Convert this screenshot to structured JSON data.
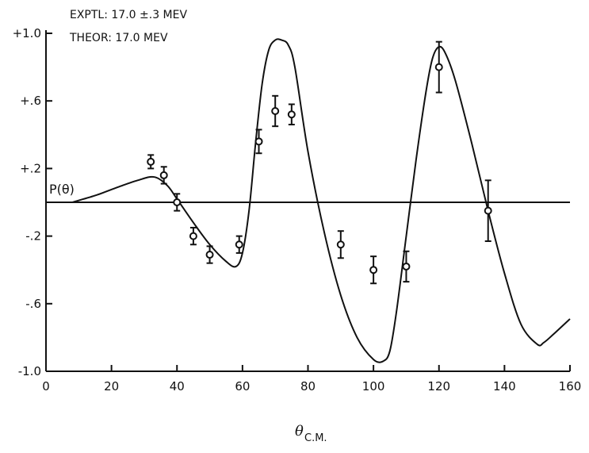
{
  "chart_data": {
    "type": "scatter",
    "title": "",
    "annotations": [
      "EXPTL: 17.0 ±.3 MEV",
      "THEOR: 17.0 MEV"
    ],
    "ylabel": "P(θ)",
    "xlabel_main": "θ",
    "xlabel_sub": "C.M.",
    "xlim": [
      0,
      160
    ],
    "ylim": [
      -1.0,
      1.0
    ],
    "x_ticks": [
      0,
      20,
      40,
      60,
      80,
      100,
      120,
      140,
      160
    ],
    "x_tick_labels": [
      "0",
      "20",
      "40",
      "60",
      "80",
      "100",
      "120",
      "140",
      "160"
    ],
    "y_ticks": [
      1.0,
      0.6,
      0.2,
      -0.2,
      -0.6,
      -1.0
    ],
    "y_tick_labels": [
      "+1.0",
      "+.6",
      "+.2",
      "-.2",
      "-.6",
      "-1.0"
    ],
    "grid": false,
    "zero_line": true,
    "series": [
      {
        "kind": "points",
        "x": [
          32,
          36,
          40,
          45,
          50,
          59,
          65,
          70,
          75,
          90,
          100,
          110,
          120,
          135
        ],
        "y": [
          0.24,
          0.16,
          0.0,
          -0.2,
          -0.31,
          -0.25,
          0.36,
          0.54,
          0.52,
          -0.25,
          -0.4,
          -0.38,
          0.8,
          -0.05
        ],
        "err": [
          0.04,
          0.05,
          0.05,
          0.05,
          0.05,
          0.05,
          0.07,
          0.09,
          0.06,
          0.08,
          0.08,
          0.09,
          0.15,
          0.18
        ]
      },
      {
        "kind": "curve",
        "x": [
          8,
          15,
          22,
          28,
          33,
          37,
          40,
          45,
          50,
          55,
          58,
          60,
          62,
          64,
          66,
          68,
          70,
          72,
          74,
          76,
          80,
          85,
          90,
          95,
          100,
          103,
          105,
          107,
          110,
          113,
          116,
          118,
          120,
          122,
          125,
          130,
          135,
          140,
          145,
          150,
          152,
          155,
          160
        ],
        "y": [
          0.0,
          0.04,
          0.09,
          0.13,
          0.15,
          0.1,
          0.02,
          -0.12,
          -0.25,
          -0.35,
          -0.38,
          -0.3,
          -0.05,
          0.35,
          0.7,
          0.9,
          0.96,
          0.96,
          0.93,
          0.8,
          0.3,
          -0.18,
          -0.55,
          -0.8,
          -0.93,
          -0.94,
          -0.88,
          -0.65,
          -0.2,
          0.25,
          0.65,
          0.85,
          0.92,
          0.88,
          0.72,
          0.35,
          -0.05,
          -0.42,
          -0.72,
          -0.84,
          -0.83,
          -0.78,
          -0.69
        ]
      }
    ]
  }
}
